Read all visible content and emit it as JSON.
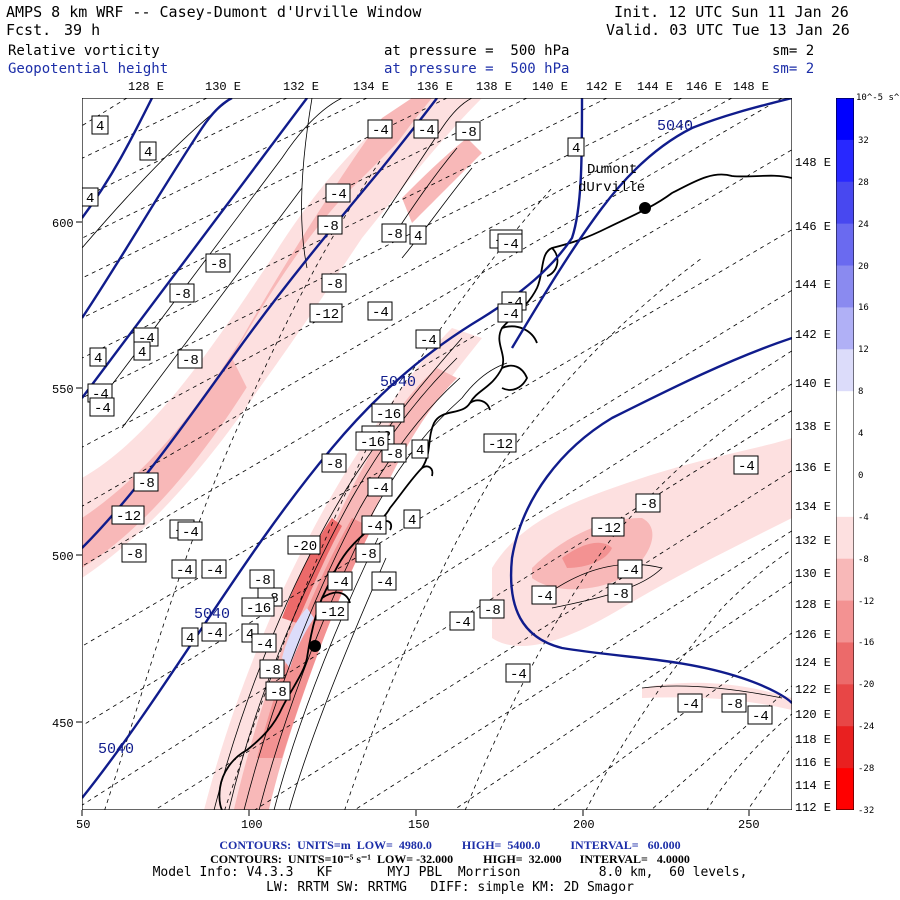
{
  "header": {
    "title": "AMPS 8 km WRF -- Casey-Dumont d'Urville Window",
    "fcst_label": "Fcst.",
    "fcst_value": "39 h",
    "init": "Init. 12 UTC Sun 11 Jan 26",
    "valid": "Valid. 03 UTC Tue 13 Jan 26",
    "field1": "Relative vorticity",
    "field1_pressure": "at pressure =  500 hPa",
    "field1_sm": "sm= 2",
    "field2": "Geopotential height",
    "field2_pressure": "at pressure =  500 hPa",
    "field2_sm": "sm= 2"
  },
  "lon_top_labels": [
    "128 E",
    "130 E",
    "132 E",
    "134 E",
    "136 E",
    "138 E",
    "140 E",
    "142 E",
    "144 E",
    "146 E",
    "148 E"
  ],
  "lat_right_labels": [
    "148 E",
    "146 E",
    "144 E",
    "142 E",
    "140 E",
    "138 E",
    "136 E",
    "134 E",
    "132 E",
    "130 E",
    "128 E",
    "126 E",
    "124 E",
    "122 E",
    "120 E",
    "118 E",
    "116 E",
    "114 E",
    "112 E"
  ],
  "x_axis_ticks": [
    "50",
    "100",
    "150",
    "200",
    "250"
  ],
  "y_axis_ticks": [
    "600",
    "550",
    "500",
    "450"
  ],
  "station_label_1": "Dumont",
  "station_label_2": "dUrville",
  "height_labels": [
    "5040",
    "5040",
    "5040",
    "5040"
  ],
  "vort_labels": [
    "4",
    "4",
    "4",
    "-8",
    "-4",
    "-4",
    "-8",
    "4",
    "-4",
    "4",
    "-8",
    "-8",
    "-12",
    "-8",
    "-4",
    "-8",
    "-4",
    "-8",
    "4",
    "4",
    "4",
    "-4",
    "-4",
    "-4",
    "-12",
    "-16",
    "-8",
    "-4",
    "-12",
    "-20",
    "-8",
    "-16",
    "4",
    "-4",
    "-8",
    "-8",
    "-12",
    "-4",
    "-8",
    "-4",
    "-4",
    "-16",
    "-8",
    "-12",
    "-8",
    "-4",
    "-4",
    "-4",
    "-4",
    "-8",
    "-8",
    "-4",
    "-4",
    "4",
    "-4",
    "4",
    "-4",
    "-12",
    "-8",
    "-8",
    "-4",
    "-4",
    "-4",
    "-8",
    "-4",
    "4",
    "-12",
    "-4",
    "-8",
    "-4",
    "-4"
  ],
  "colorbar": {
    "units": "10^-5 s^-1",
    "labels": [
      "32",
      "28",
      "24",
      "20",
      "16",
      "12",
      "8",
      "4",
      "0",
      "-4",
      "-8",
      "-12",
      "-16",
      "-20",
      "-24",
      "-28",
      "-32"
    ],
    "colors": [
      "#0000ff",
      "#2828ff",
      "#4848f0",
      "#6a6af0",
      "#8a8af0",
      "#b0b0f6",
      "#dcdcfa",
      "#ffffff",
      "#ffffff",
      "#ffffff",
      "#fde0e0",
      "#f8b8b8",
      "#f39292",
      "#ec6a6a",
      "#e84646",
      "#e92020",
      "#ff0000"
    ]
  },
  "footer": {
    "contours1": "CONTOURS:  UNITS=m  LOW=  4980.0          HIGH=  5400.0          INTERVAL=   60.000",
    "contours2": "CONTOURS:  UNITS=10⁻⁵ s⁻¹  LOW= -32.000          HIGH=  32.000      INTERVAL=   4.0000",
    "model1": "Model Info: V4.3.3   KF       MYJ PBL  Morrison          8.0 km,  60 levels,",
    "model2": "LW: RRTM SW: RRTMG   DIFF: simple KM: 2D Smagor"
  }
}
